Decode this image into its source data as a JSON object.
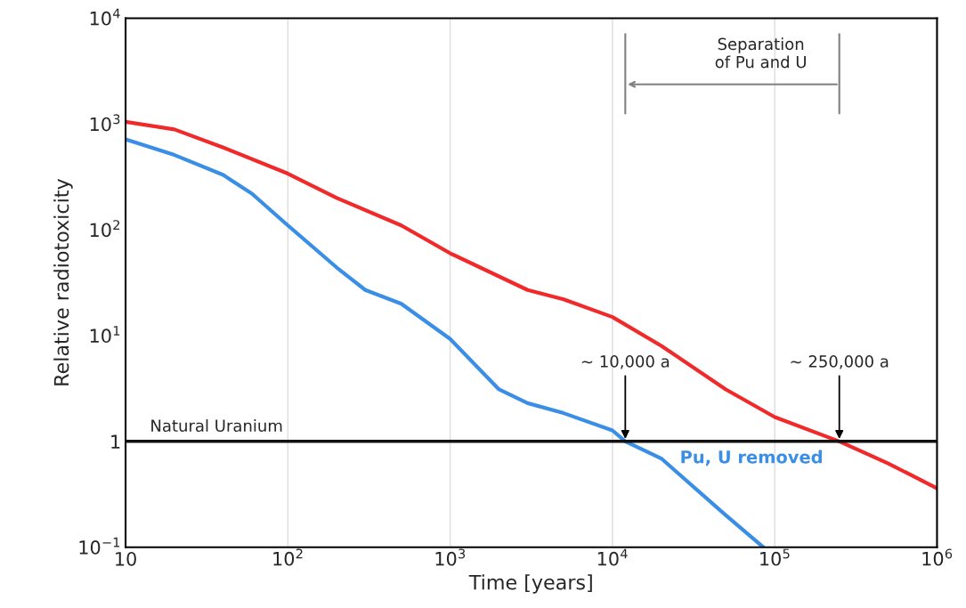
{
  "chart_data": {
    "type": "line",
    "xlabel": "Time [years]",
    "ylabel": "Relative radiotoxicity",
    "log": "xy",
    "xlim": [
      10,
      1000000
    ],
    "ylim": [
      0.1,
      10000
    ],
    "xticks": [
      10,
      {
        "value": 100,
        "label": "10$^{2}$"
      },
      {
        "value": 1000,
        "label": "10$^{3}$"
      },
      {
        "value": 10000,
        "label": "10$^{4}$"
      },
      {
        "value": 100000,
        "label": "10$^{5}$"
      },
      {
        "value": 1000000,
        "label": "10$^{6}$"
      }
    ],
    "yticks": [
      {
        "value": 0.1,
        "label": "10$^{−1}$"
      },
      1,
      {
        "value": 10,
        "label": "10$^{1}$"
      },
      {
        "value": 100,
        "label": "10$^{2}$"
      },
      {
        "value": 1000,
        "label": "10$^{3}$"
      },
      {
        "value": 10000,
        "label": "10$^{4}$"
      }
    ],
    "grid": "x",
    "legend": false,
    "marker": "none",
    "line_style": "solid",
    "series": [
      {
        "color": "#f02a2a",
        "x": [
          10,
          20,
          40,
          100,
          200,
          500,
          1000,
          3000,
          5000,
          10000,
          20000,
          50000,
          100000,
          250000,
          500000,
          1000000
        ],
        "values": [
          1050,
          890,
          600,
          340,
          200,
          110,
          60,
          27,
          22,
          15,
          8,
          3.1,
          1.7,
          1,
          0.62,
          0.36
        ]
      },
      {
        "name": "Pu, U removed",
        "color": "#3a8ee6",
        "x": [
          10,
          20,
          40,
          60,
          100,
          200,
          300,
          500,
          1000,
          2000,
          3000,
          5000,
          10000,
          12000,
          20000,
          50000,
          85000
        ],
        "values": [
          716,
          510,
          330,
          220,
          110,
          44,
          27,
          20,
          9.3,
          3.1,
          2.3,
          1.85,
          1.27,
          1,
          0.69,
          0.2,
          0.1
        ]
      }
    ],
    "ref_lines": [
      {
        "axis": "y",
        "value": 1,
        "label": "Natural Uranium",
        "color": "#111111"
      }
    ],
    "annotations": [
      {
        "text": "~ 10,000 a",
        "x": 12000,
        "y": 1
      },
      {
        "text": "~ 250,000 a",
        "x": 250000,
        "y": 1
      },
      "Separation\nof Pu and U"
    ]
  }
}
